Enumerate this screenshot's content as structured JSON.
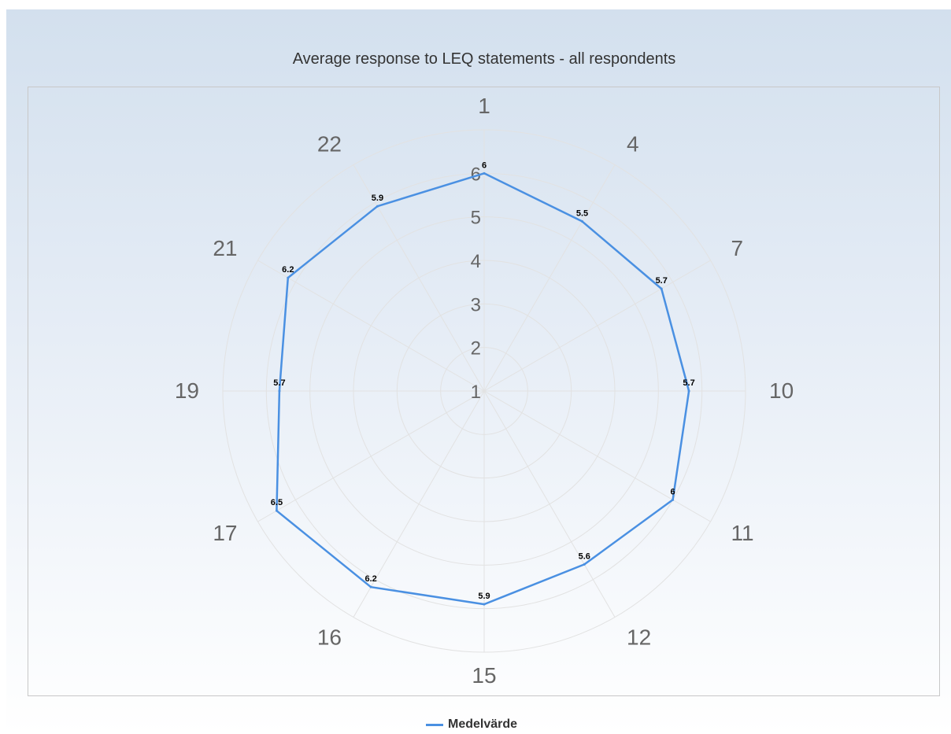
{
  "chart_data": {
    "type": "radar",
    "title": "Average response to LEQ statements - all respondents",
    "categories": [
      "1",
      "4",
      "7",
      "10",
      "11",
      "12",
      "15",
      "16",
      "17",
      "19",
      "21",
      "22"
    ],
    "series": [
      {
        "name": "Medelvärde",
        "values": [
          6,
          5.5,
          5.7,
          5.7,
          6,
          5.6,
          5.9,
          6.2,
          6.5,
          5.7,
          6.2,
          5.9
        ],
        "color": "#4a90e2"
      }
    ],
    "radial_ticks": [
      "1",
      "2",
      "3",
      "4",
      "5",
      "6"
    ],
    "radial_range": [
      1,
      7
    ],
    "grid": true,
    "legend_position": "bottom"
  },
  "colors": {
    "grid": "#e2e2e2",
    "axis_label": "#666666",
    "data_label": "#000000"
  }
}
